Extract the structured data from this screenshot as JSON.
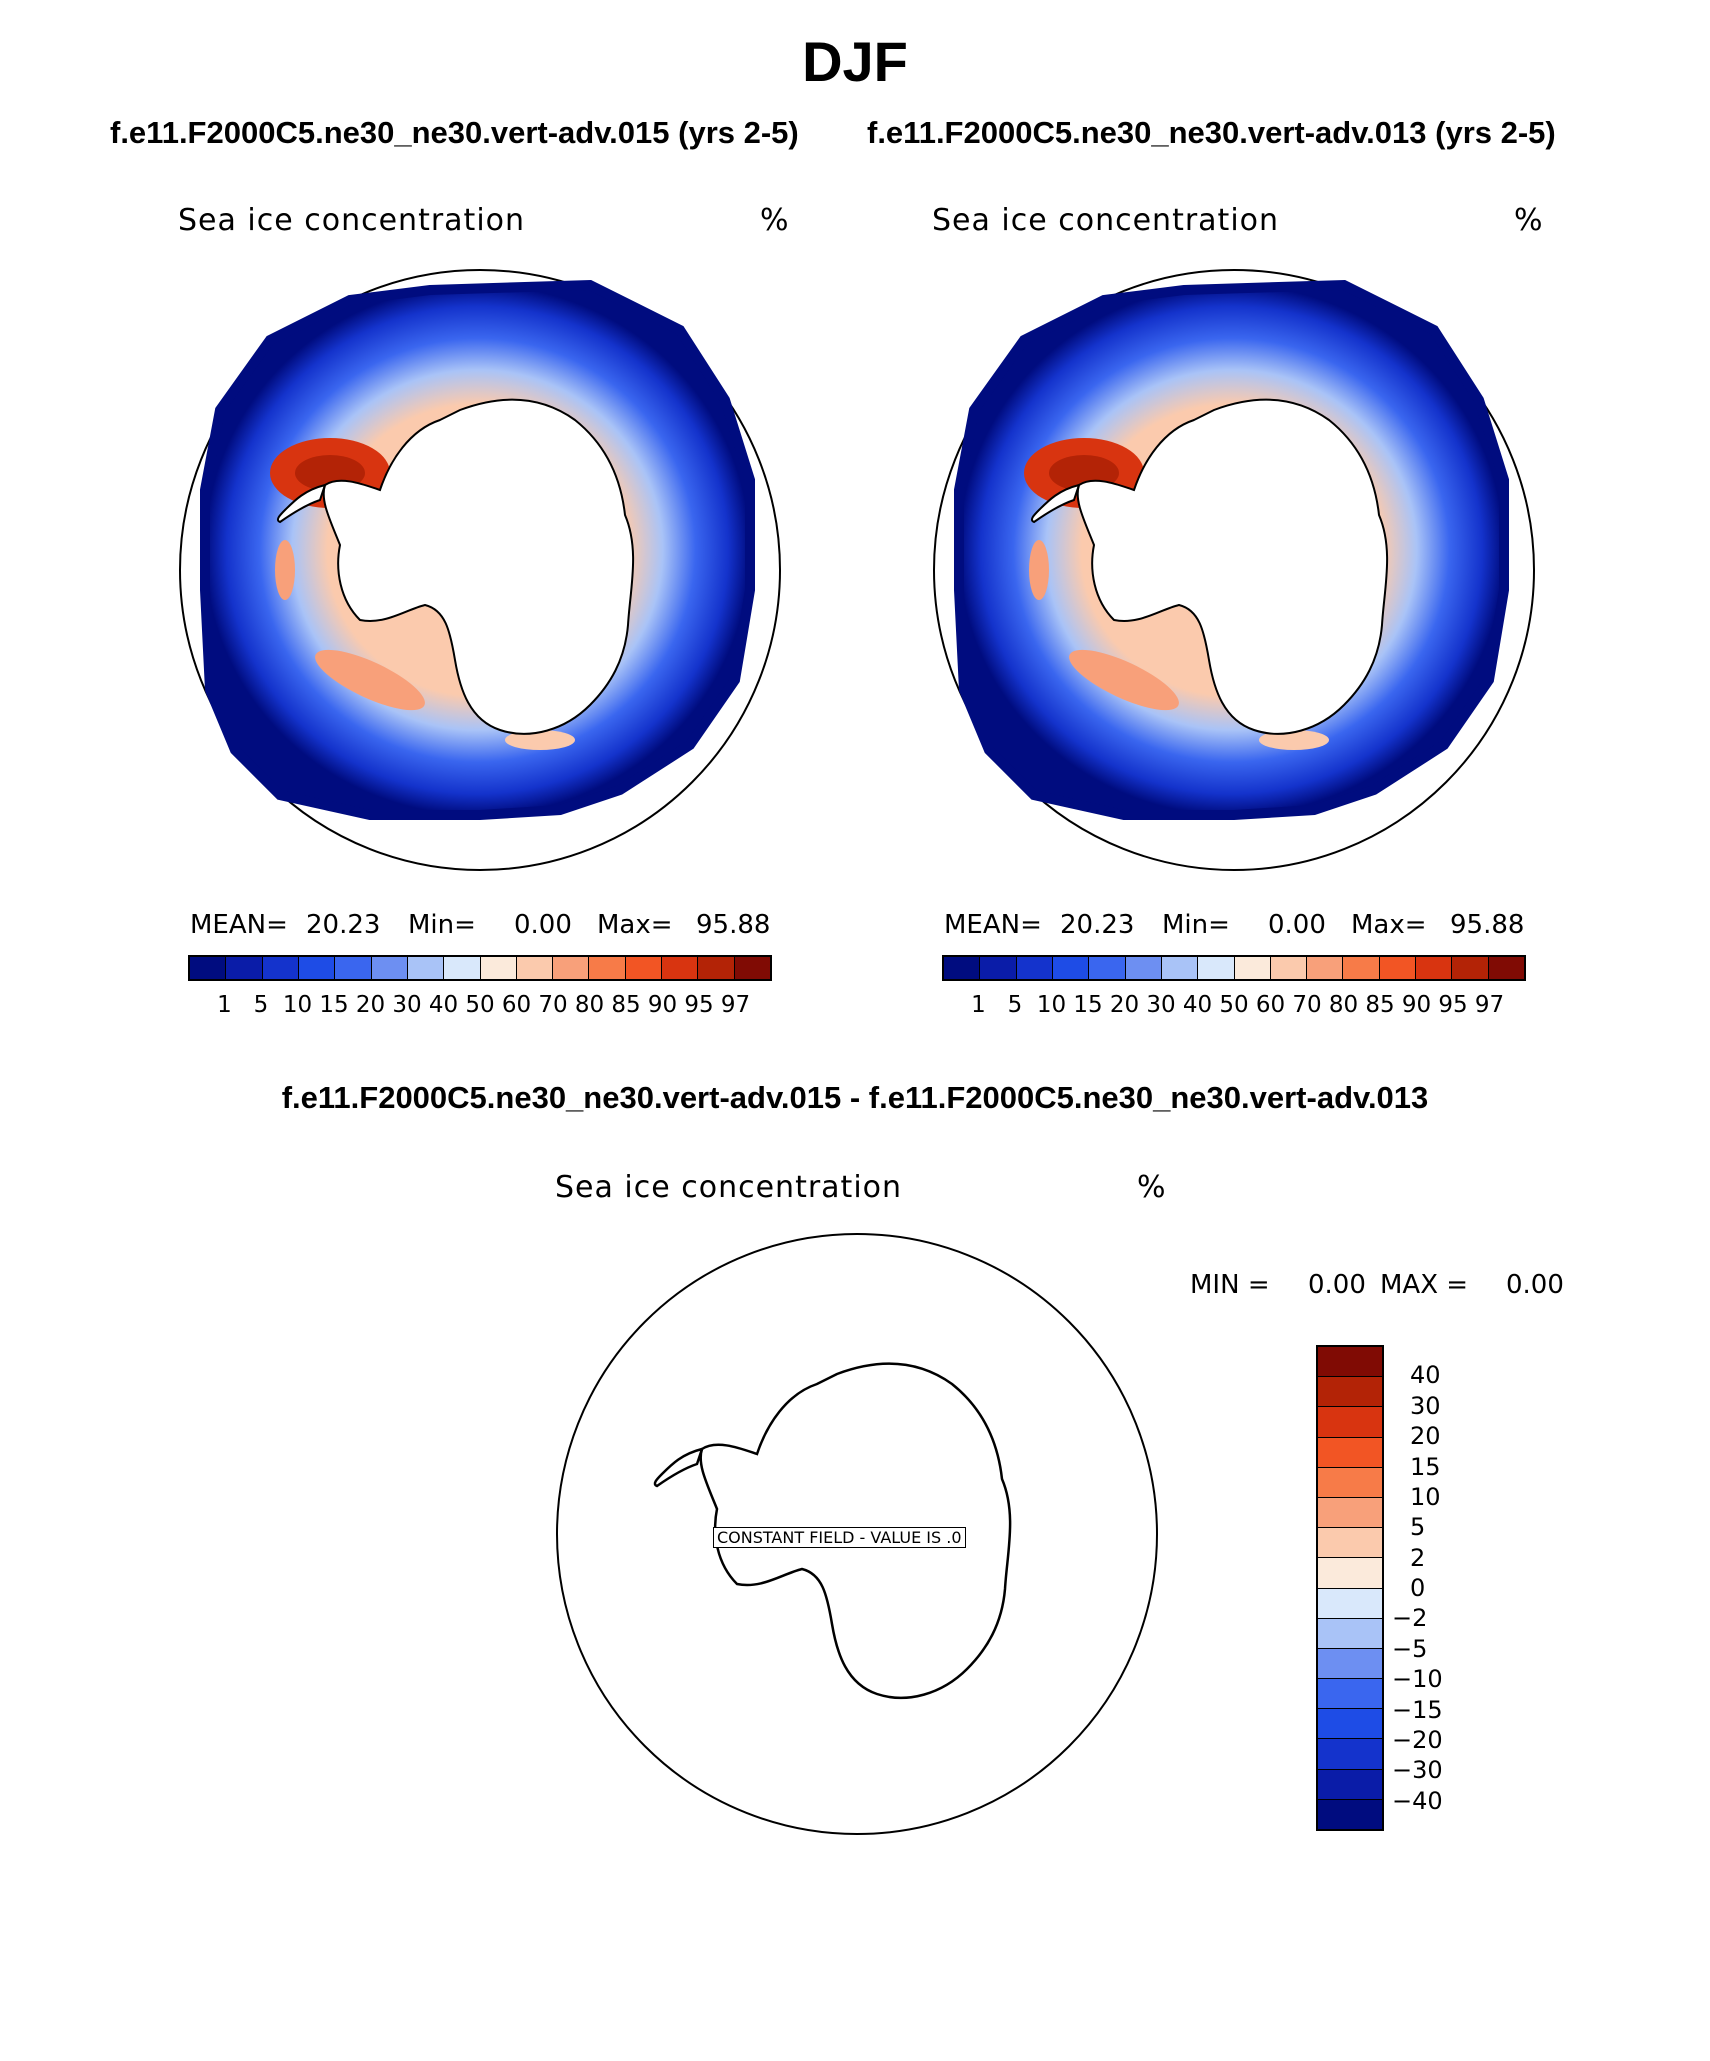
{
  "title": "DJF",
  "subtitle_left": "f.e11.F2000C5.ne30_ne30.vert-adv.015 (yrs 2-5)",
  "subtitle_right": "f.e11.F2000C5.ne30_ne30.vert-adv.013 (yrs 2-5)",
  "diff_title": "f.e11.F2000C5.ne30_ne30.vert-adv.015 - f.e11.F2000C5.ne30_ne30.vert-adv.013",
  "panels": [
    {
      "label": "Sea ice concentration",
      "units": "%",
      "mean_label": "MEAN=",
      "mean_value": "20.23",
      "min_label": "Min=",
      "min_value": "0.00",
      "max_label": "Max=",
      "max_value": "95.88"
    },
    {
      "label": "Sea ice concentration",
      "units": "%",
      "mean_label": "MEAN=",
      "mean_value": "20.23",
      "min_label": "Min=",
      "min_value": "0.00",
      "max_label": "Max=",
      "max_value": "95.88"
    }
  ],
  "diff_panel": {
    "label": "Sea ice concentration",
    "units": "%",
    "min_label": "MIN =",
    "min_value": "0.00",
    "max_label": "MAX =",
    "max_value": "0.00",
    "constant_field_text": "CONSTANT FIELD - VALUE IS .0"
  },
  "colorbar_levels": [
    "1",
    "5",
    "10",
    "15",
    "20",
    "30",
    "40",
    "50",
    "60",
    "70",
    "80",
    "85",
    "90",
    "95",
    "97"
  ],
  "colorbar_colors": [
    "#000c7f",
    "#0a1ca8",
    "#1433cc",
    "#1e4ce6",
    "#3a66ef",
    "#6d8ff2",
    "#a9c3f7",
    "#d9e8fb",
    "#fbeadb",
    "#fbcaad",
    "#f8a07a",
    "#f77b48",
    "#f25524",
    "#d83410",
    "#b32306",
    "#800b04"
  ],
  "diff_levels": [
    "40",
    "30",
    "20",
    "15",
    "10",
    "5",
    "2",
    "0",
    "−2",
    "−5",
    "−10",
    "−15",
    "−20",
    "−30",
    "−40"
  ],
  "diff_colors": [
    "#800b04",
    "#b32306",
    "#d83410",
    "#f25524",
    "#f77b48",
    "#f8a07a",
    "#fbcaad",
    "#fbeadb",
    "#d9e8fb",
    "#a9c3f7",
    "#6d8ff2",
    "#3a66ef",
    "#1e4ce6",
    "#1433cc",
    "#0a1ca8",
    "#000c7f"
  ]
}
